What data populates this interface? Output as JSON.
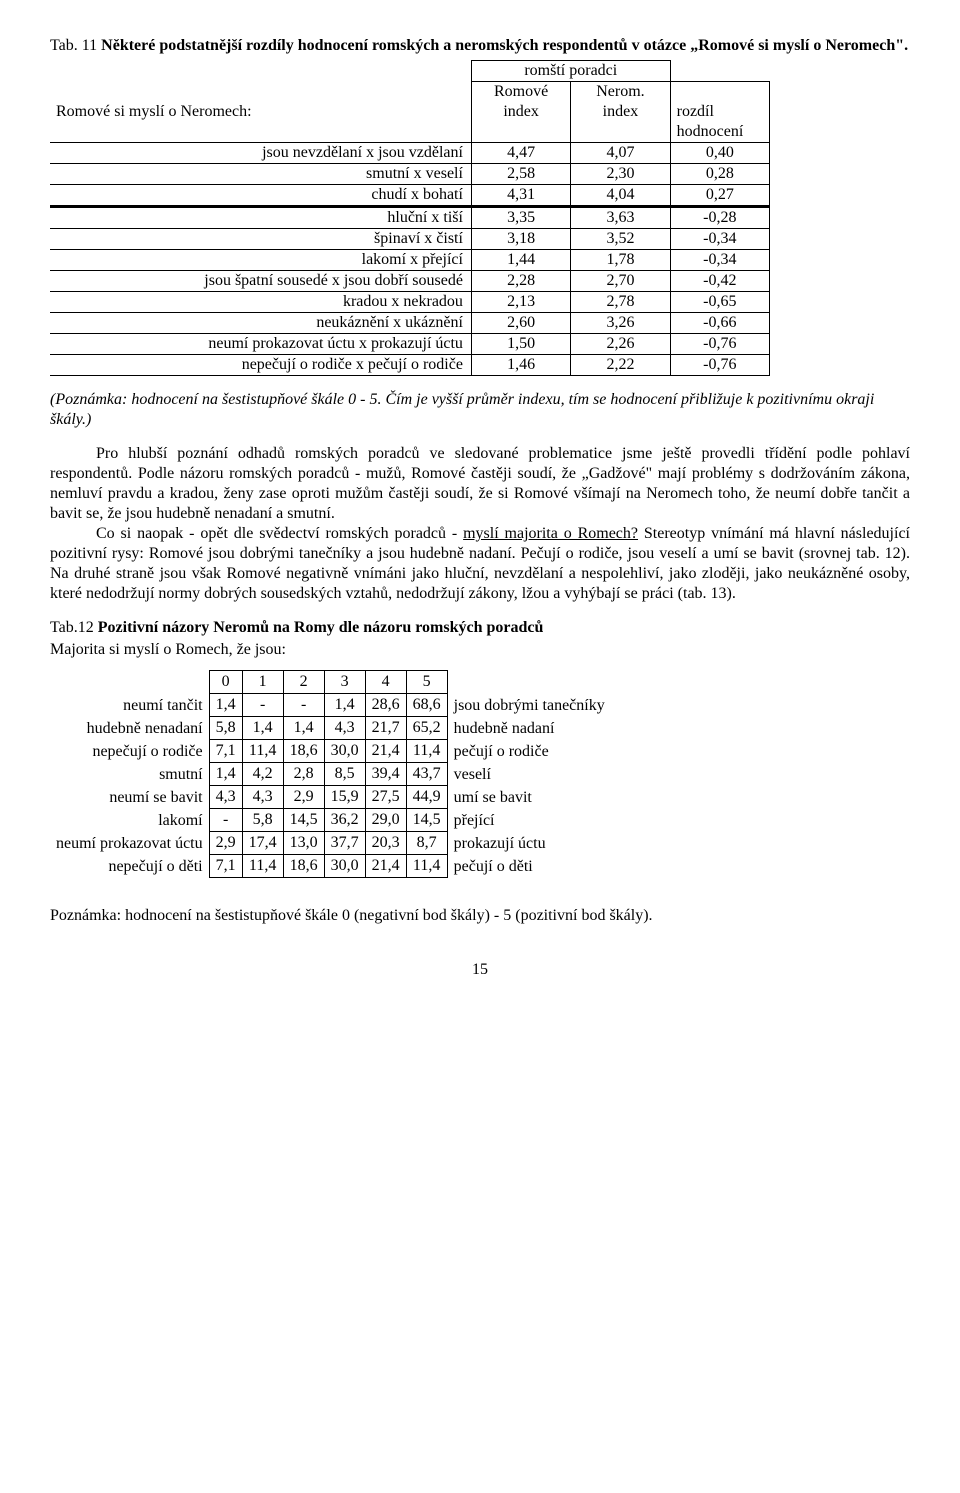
{
  "tab11": {
    "caption_prefix": "Tab. 11",
    "caption": " Některé podstatnější rozdíly hodnocení romských a neromských respondentů v otázce „Romové si myslí o Neromech\".",
    "header": {
      "top_span": "romští poradci",
      "c1": "Romové",
      "c2": "Nerom.",
      "row_label": "Romové si myslí o Neromech:",
      "s1": "index",
      "s2": "index",
      "s3": "rozdíl",
      "s3b": "hodnocení"
    },
    "rows": [
      {
        "label": "jsou nevzdělaní  x  jsou vzdělaní",
        "a": "4,47",
        "b": "4,07",
        "c": "0,40"
      },
      {
        "label": "smutní  x  veselí",
        "a": "2,58",
        "b": "2,30",
        "c": "0,28"
      },
      {
        "label": "chudí  x  bohatí",
        "a": "4,31",
        "b": "4,04",
        "c": "0,27"
      },
      {
        "label": "hluční  x  tiší",
        "a": "3,35",
        "b": "3,63",
        "c": "-0,28"
      },
      {
        "label": "špinaví  x  čistí",
        "a": "3,18",
        "b": "3,52",
        "c": "-0,34"
      },
      {
        "label": "lakomí  x  přející",
        "a": "1,44",
        "b": "1,78",
        "c": "-0,34"
      },
      {
        "label": "jsou špatní sousedé  x  jsou dobří  sousedé",
        "a": "2,28",
        "b": "2,70",
        "c": "-0,42"
      },
      {
        "label": "kradou  x  nekradou",
        "a": "2,13",
        "b": "2,78",
        "c": "-0,65"
      },
      {
        "label": "neukáznění  x  ukáznění",
        "a": "2,60",
        "b": "3,26",
        "c": "-0,66"
      },
      {
        "label": "neumí prokazovat úctu  x  prokazují úctu",
        "a": "1,50",
        "b": "2,26",
        "c": "-0,76"
      },
      {
        "label": "nepečují o rodiče  x  pečují o rodiče",
        "a": "1,46",
        "b": "2,22",
        "c": "-0,76"
      }
    ]
  },
  "note1": "(Poznámka: hodnocení na šestistupňové škále 0 - 5. Čím je vyšší průměr indexu,  tím se hodnocení přibližuje k pozitivnímu okraji škály.)",
  "para1a": "Pro hlubší poznání odhadů romských poradců ve sledované problematice jsme ještě provedli třídění podle pohlaví respondentů. Podle názoru romských poradců - mužů, Romové častěji soudí, že „Gadžové\" mají problémy s dodržováním zákona, nemluví pravdu a kradou, ženy zase oproti mužům častěji soudí, že si Romové všímají na Neromech toho, že neumí dobře tančit a bavit se, že jsou hudebně nenadaní a smutní.",
  "para1b_pre": "Co si naopak - opět dle svědectví romských poradců - ",
  "para1b_underlined": "myslí majorita o Romech?",
  "para1b_post": " Stereotyp vnímání má hlavní následující pozitivní rysy: Romové jsou dobrými tanečníky a jsou hudebně nadaní. Pečují o rodiče, jsou veselí a umí se bavit (srovnej tab. 12). Na druhé straně jsou však Romové negativně vnímáni jako hluční, nevzdělaní a nespolehliví, jako zloději, jako neukázněné osoby, které nedodržují normy dobrých sousedských vztahů, nedodržují zákony, lžou a vyhýbají se práci (tab. 13).",
  "tab12": {
    "caption_prefix": "Tab.12 ",
    "caption_bold": " Pozitivní názory Neromů na Romy dle názoru romských poradců",
    "subtitle": "Majorita si myslí o Romech, že jsou:",
    "cols": [
      "0",
      "1",
      "2",
      "3",
      "4",
      "5"
    ],
    "rows": [
      {
        "l": "neumí tančit",
        "v": [
          "1,4",
          "-",
          "-",
          "1,4",
          "28,6",
          "68,6"
        ],
        "r": "jsou dobrými tanečníky"
      },
      {
        "l": "hudebně nenadaní",
        "v": [
          "5,8",
          "1,4",
          "1,4",
          "4,3",
          "21,7",
          "65,2"
        ],
        "r": "hudebně nadaní"
      },
      {
        "l": "nepečují o rodiče",
        "v": [
          "7,1",
          "11,4",
          "18,6",
          "30,0",
          "21,4",
          "11,4"
        ],
        "r": "pečují o rodiče"
      },
      {
        "l": "smutní",
        "v": [
          "1,4",
          "4,2",
          "2,8",
          "8,5",
          "39,4",
          "43,7"
        ],
        "r": "veselí"
      },
      {
        "l": "neumí se bavit",
        "v": [
          "4,3",
          "4,3",
          "2,9",
          "15,9",
          "27,5",
          "44,9"
        ],
        "r": "umí se bavit"
      },
      {
        "l": "lakomí",
        "v": [
          "-",
          "5,8",
          "14,5",
          "36,2",
          "29,0",
          "14,5"
        ],
        "r": "přející"
      },
      {
        "l": "neumí prokazovat úctu",
        "v": [
          "2,9",
          "17,4",
          "13,0",
          "37,7",
          "20,3",
          "8,7"
        ],
        "r": "prokazují úctu"
      },
      {
        "l": "nepečují o děti",
        "v": [
          "7,1",
          "11,4",
          "18,6",
          "30,0",
          "21,4",
          "11,4"
        ],
        "r": "pečují o děti"
      }
    ]
  },
  "footnote": "Poznámka: hodnocení na šestistupňové škále 0 (negativní bod škály) - 5 (pozitivní bod škály).",
  "page": "15"
}
